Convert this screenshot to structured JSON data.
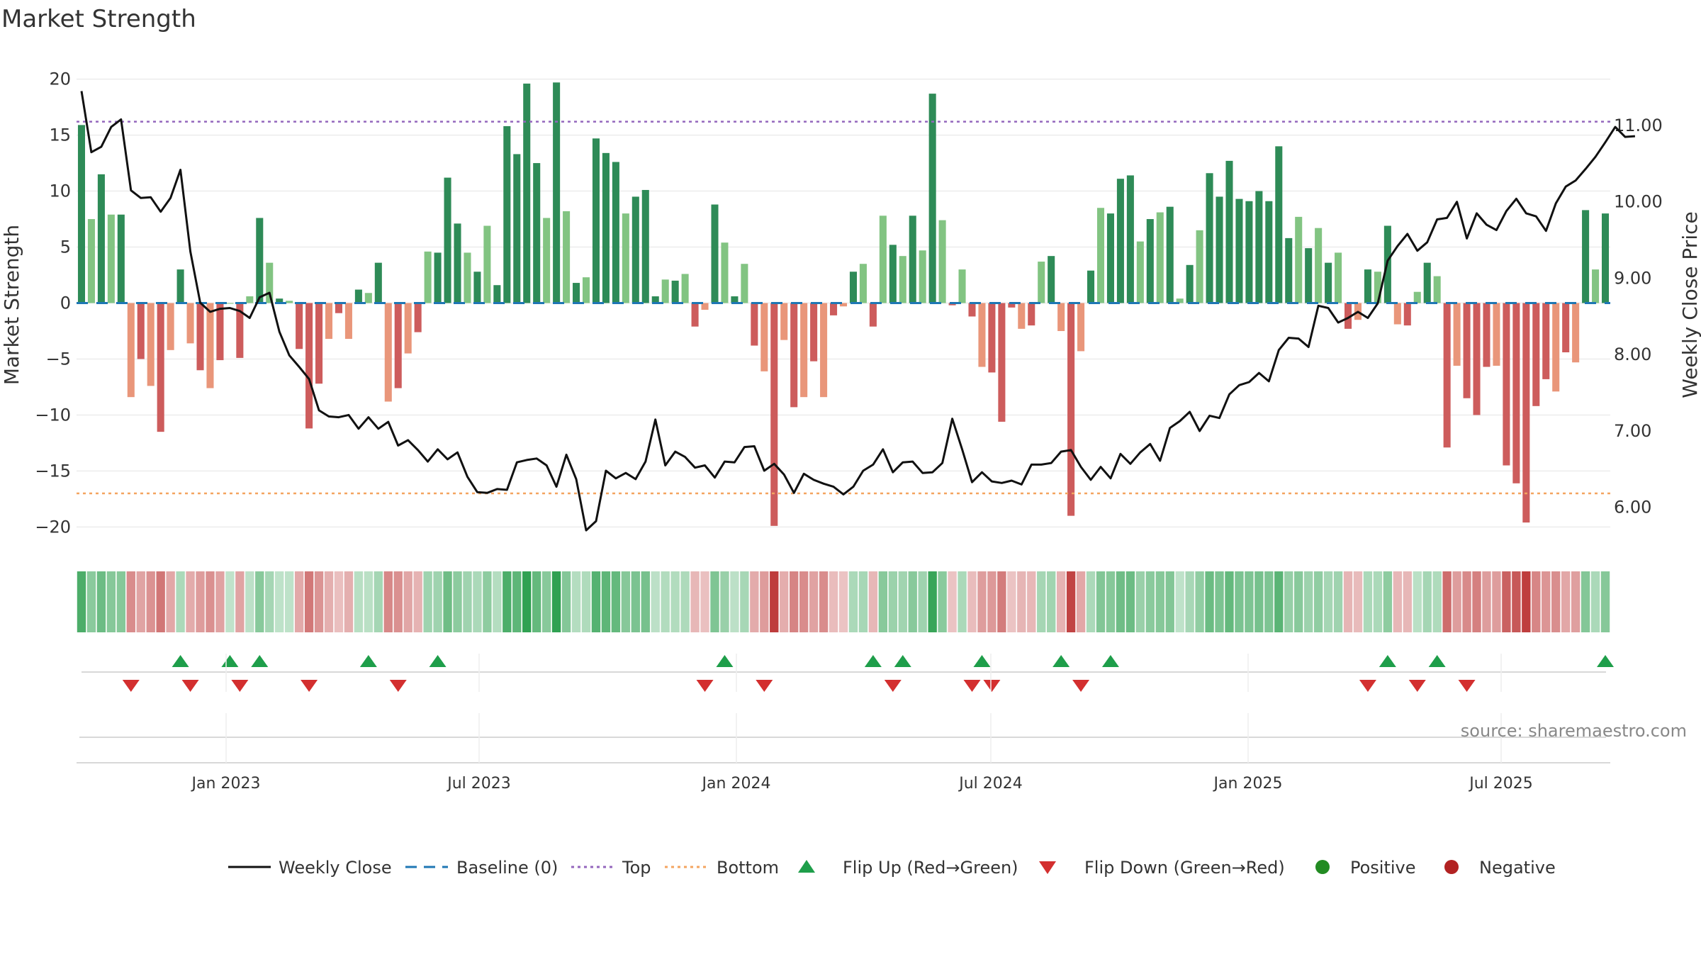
{
  "chart_data": {
    "type": "bar",
    "title": "Market Strength",
    "ylabel": "Market Strength",
    "y2label": "Weekly Close Price",
    "ylim": [
      -22,
      22
    ],
    "y2lim": [
      5.45,
      11.9
    ],
    "yticks": [
      "20",
      "15",
      "10",
      "5",
      "0",
      "−5",
      "−10",
      "−15",
      "−20"
    ],
    "y2ticks": [
      "11.00",
      "10.00",
      "9.00",
      "8.00",
      "7.00",
      "6.00"
    ],
    "xlabels": [
      "Jan 2023",
      "Jul 2023",
      "Jan 2024",
      "Jul 2024",
      "Jan 2025",
      "Jul 2025"
    ],
    "top_line": 16.2,
    "bottom_line": -17.0,
    "baseline": 0,
    "strength": [
      15.9,
      7.5,
      11.5,
      7.9,
      7.9,
      -8.4,
      -5.0,
      -7.4,
      -11.5,
      -4.2,
      3.0,
      -3.6,
      -6.0,
      -7.6,
      -5.1,
      0.0,
      -4.9,
      0.6,
      7.6,
      3.6,
      0.4,
      0.2,
      -4.1,
      -11.2,
      -7.2,
      -3.2,
      -0.9,
      -3.2,
      1.2,
      0.9,
      3.6,
      -8.8,
      -7.6,
      -4.5,
      -2.6,
      4.6,
      4.5,
      11.2,
      7.1,
      4.5,
      2.8,
      6.9,
      1.6,
      15.8,
      13.3,
      19.6,
      12.5,
      7.6,
      19.7,
      8.2,
      1.8,
      2.3,
      14.7,
      13.4,
      12.6,
      8.0,
      9.5,
      10.1,
      0.6,
      2.1,
      2.0,
      2.6,
      -2.1,
      -0.6,
      8.8,
      5.4,
      0.6,
      3.5,
      -3.8,
      -6.1,
      -19.9,
      -3.3,
      -9.3,
      -8.4,
      -5.2,
      -8.4,
      -1.1,
      -0.3,
      2.8,
      3.5,
      -2.1,
      7.8,
      5.2,
      4.2,
      7.8,
      4.7,
      18.7,
      7.4,
      -0.2,
      3.0,
      -1.2,
      -5.7,
      -6.2,
      -10.6,
      -0.4,
      -2.3,
      -2.0,
      3.7,
      4.2,
      -2.5,
      -19.0,
      -4.3,
      2.9,
      8.5,
      8.0,
      11.1,
      11.4,
      5.5,
      7.5,
      8.1,
      8.6,
      0.4,
      3.4,
      6.5,
      11.6,
      9.5,
      12.7,
      9.3,
      9.1,
      10.0,
      9.1,
      14.0,
      5.8,
      7.7,
      4.9,
      6.7,
      3.6,
      4.5,
      -2.3,
      -1.5,
      3.0,
      2.8,
      6.9,
      -1.9,
      -2.0,
      1.0,
      3.6,
      2.4,
      -12.9,
      -5.6,
      -8.5,
      -10.0,
      -5.7,
      -5.6,
      -14.5,
      -16.1,
      -19.6,
      -9.2,
      -6.8,
      -7.9,
      -4.4,
      -5.3,
      8.3,
      3.0,
      8.0
    ],
    "price": [
      11.45,
      10.65,
      10.72,
      10.98,
      11.08,
      10.15,
      10.05,
      10.06,
      9.87,
      10.05,
      10.42,
      9.35,
      8.68,
      8.56,
      8.6,
      8.61,
      8.57,
      8.48,
      8.75,
      8.81,
      8.3,
      7.99,
      7.84,
      7.68,
      7.27,
      7.19,
      7.18,
      7.21,
      7.03,
      7.18,
      7.03,
      7.12,
      6.81,
      6.88,
      6.75,
      6.6,
      6.76,
      6.63,
      6.72,
      6.4,
      6.2,
      6.19,
      6.24,
      6.23,
      6.59,
      6.62,
      6.64,
      6.55,
      6.27,
      6.69,
      6.37,
      5.7,
      5.82,
      6.48,
      6.38,
      6.45,
      6.37,
      6.6,
      7.15,
      6.55,
      6.73,
      6.66,
      6.52,
      6.55,
      6.39,
      6.6,
      6.59,
      6.79,
      6.8,
      6.48,
      6.57,
      6.43,
      6.19,
      6.44,
      6.36,
      6.31,
      6.27,
      6.17,
      6.27,
      6.48,
      6.56,
      6.76,
      6.46,
      6.59,
      6.6,
      6.45,
      6.46,
      6.58,
      7.16,
      6.76,
      6.33,
      6.46,
      6.34,
      6.32,
      6.35,
      6.3,
      6.56,
      6.56,
      6.58,
      6.73,
      6.75,
      6.53,
      6.36,
      6.53,
      6.38,
      6.7,
      6.57,
      6.72,
      6.83,
      6.61,
      7.04,
      7.13,
      7.25,
      7.0,
      7.2,
      7.17,
      7.48,
      7.6,
      7.64,
      7.76,
      7.65,
      8.06,
      8.22,
      8.21,
      8.1,
      8.64,
      8.61,
      8.42,
      8.48,
      8.56,
      8.48,
      8.67,
      9.23,
      9.42,
      9.58,
      9.36,
      9.47,
      9.77,
      9.79,
      10.0,
      9.52,
      9.85,
      9.7,
      9.63,
      9.88,
      10.04,
      9.85,
      9.81,
      9.62,
      9.98,
      10.2,
      10.28,
      10.43,
      10.59,
      10.78,
      10.98,
      10.85,
      10.86
    ],
    "flip_up": [
      10,
      15,
      18,
      29,
      36,
      65,
      80,
      83,
      91,
      99,
      104,
      132,
      137,
      154
    ],
    "flip_down": [
      5,
      11,
      16,
      23,
      32,
      63,
      69,
      82,
      90,
      92,
      101,
      130,
      135,
      140
    ],
    "legend": [
      "Weekly Close",
      "Baseline (0)",
      "Top",
      "Bottom",
      "Flip Up (Red→Green)",
      "Flip Down (Green→Red)",
      "Positive",
      "Negative"
    ],
    "source": "source: sharemaestro.com",
    "colors": {
      "pos_dark": "#2e8b57",
      "pos_light": "#82c482",
      "neg_dark": "#cd5c5c",
      "neg_light": "#e9967a",
      "price": "#111111",
      "baseline": "#1f77b4",
      "top": "#9467bd",
      "bottom": "#f4a460",
      "up_marker": "#1e9e4a",
      "down_marker": "#d32f2f",
      "positive_dot": "#228b22",
      "negative_dot": "#b22222"
    }
  }
}
